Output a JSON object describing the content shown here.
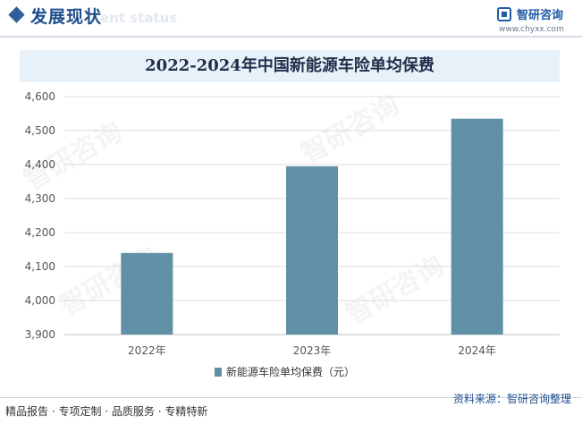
{
  "header": {
    "section_title": "发展现状",
    "section_subtitle": "ent status",
    "brand_name": "智研咨询",
    "brand_url": "www.chyxx.com"
  },
  "footer": {
    "left_text": "精品报告 · 专项定制 · 品质服务 · 专精特新",
    "source_text": "资料来源：智研咨询整理"
  },
  "watermark_text": "智研咨询",
  "colors": {
    "bar": "#5f90a6",
    "accent": "#1f4e8c"
  },
  "chart_data": {
    "type": "bar",
    "title": "2022-2024年中国新能源车险单均保费",
    "categories": [
      "2022年",
      "2023年",
      "2024年"
    ],
    "series": [
      {
        "name": "新能源车险单均保费（元）",
        "values": [
          4140,
          4395,
          4535
        ]
      }
    ],
    "y_ticks": [
      "3,900",
      "4,000",
      "4,100",
      "4,200",
      "4,300",
      "4,400",
      "4,500",
      "4,600"
    ],
    "ylim": [
      3900,
      4600
    ],
    "grid": true,
    "legend_position": "bottom"
  }
}
